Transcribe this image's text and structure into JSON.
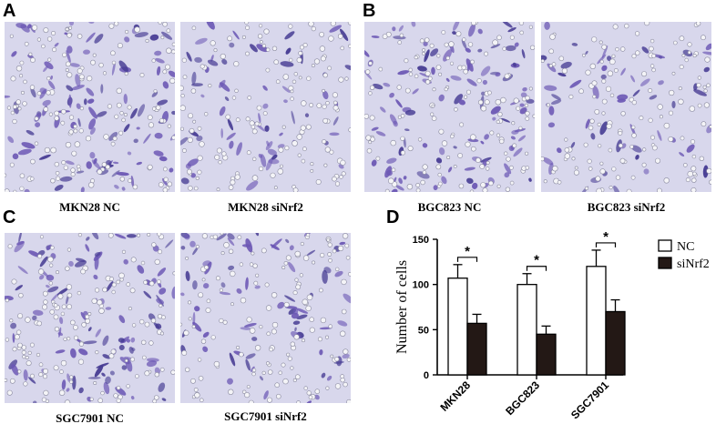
{
  "panels": {
    "a": {
      "letter": "A",
      "left_caption": "MKN28 NC",
      "right_caption": "MKN28 siNrf2"
    },
    "b": {
      "letter": "B",
      "left_caption": "BGC823 NC",
      "right_caption": "BGC823 siNrf2"
    },
    "c": {
      "letter": "C",
      "left_caption": "SGC7901 NC",
      "right_caption": "SGC7901 siNrf2"
    },
    "d": {
      "letter": "D"
    }
  },
  "colors": {
    "stain_background": "#d8d7ec",
    "stain_cell": "#6b57b4",
    "stain_cell_dark": "#453a92",
    "nc_fill": "#ffffff",
    "sinrf2_fill": "#231815"
  },
  "chart_data": {
    "type": "bar",
    "categories": [
      "MKN28",
      "BGC823",
      "SGC7901"
    ],
    "series": [
      {
        "name": "NC",
        "values": [
          107,
          100,
          120
        ],
        "errors": [
          15,
          12,
          18
        ]
      },
      {
        "name": "siNrf2",
        "values": [
          57,
          45,
          70
        ],
        "errors": [
          10,
          9,
          13
        ]
      }
    ],
    "significance": [
      "*",
      "*",
      "*"
    ],
    "ylabel": "Number of cells",
    "xlabel": "",
    "ylim": [
      0,
      150
    ],
    "yticks": [
      0,
      50,
      100,
      150
    ],
    "legend_position": "top-right"
  }
}
